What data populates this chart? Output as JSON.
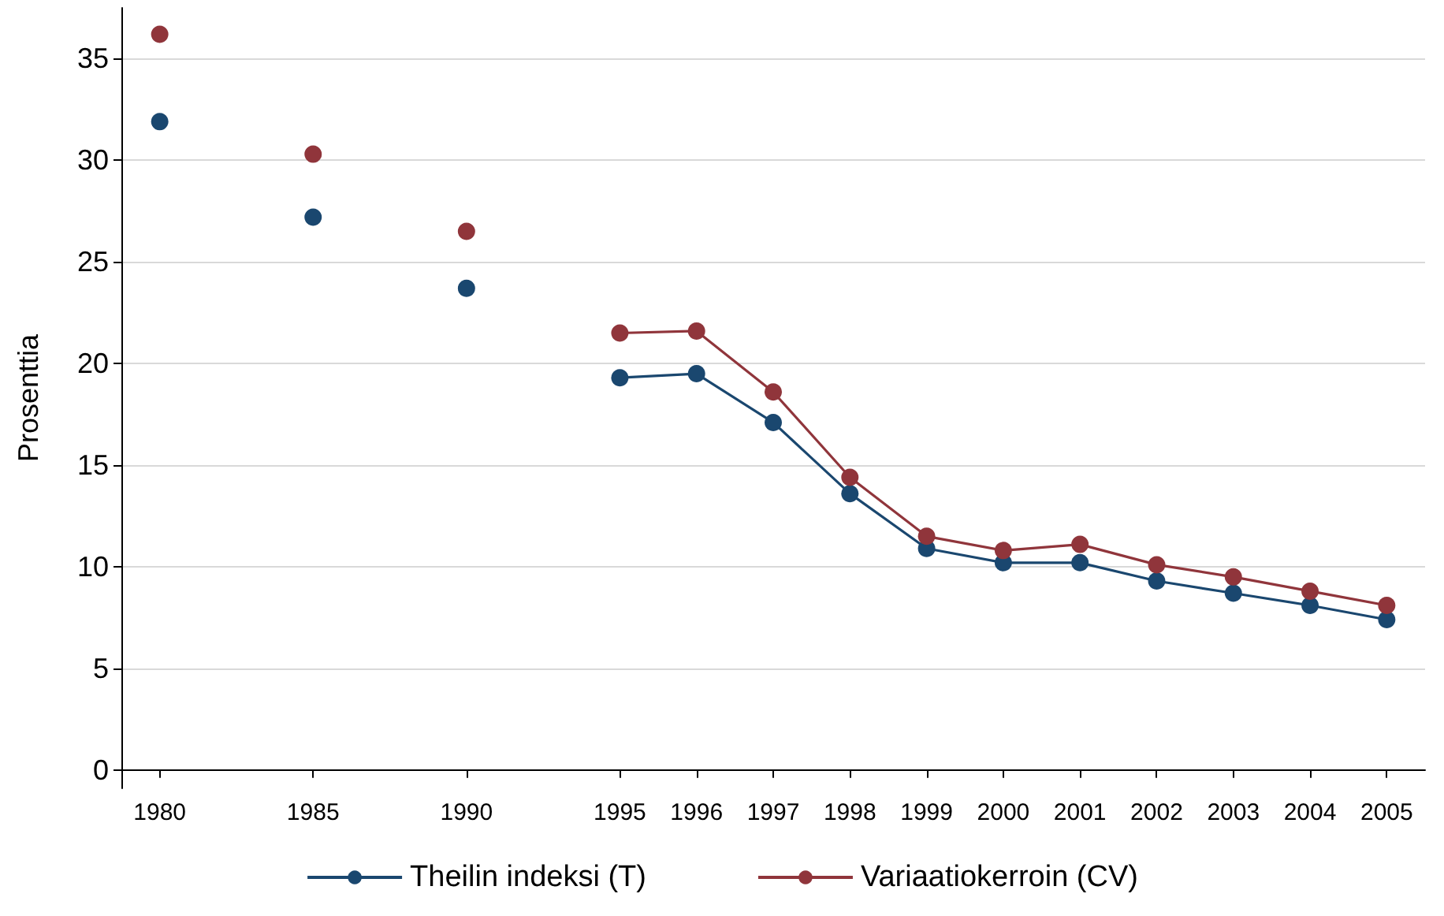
{
  "chart_data": {
    "type": "line",
    "ylabel": "Prosenttia",
    "categories": [
      "1980",
      null,
      "1985",
      null,
      "1990",
      null,
      "1995",
      "1996",
      "1997",
      "1998",
      "1999",
      "2000",
      "2001",
      "2002",
      "2003",
      "2004",
      "2005"
    ],
    "series": [
      {
        "name": "Theilin indeksi (T)",
        "color": "#1a476f",
        "values": [
          31.9,
          null,
          27.2,
          null,
          23.7,
          null,
          19.3,
          19.5,
          17.1,
          13.6,
          10.9,
          10.2,
          10.2,
          9.3,
          8.7,
          8.1,
          7.4
        ]
      },
      {
        "name": "Variaatiokerroin (CV)",
        "color": "#90353b",
        "values": [
          36.2,
          null,
          30.3,
          null,
          26.5,
          null,
          21.5,
          21.6,
          18.6,
          14.4,
          11.5,
          10.8,
          11.1,
          10.1,
          9.5,
          8.8,
          8.1
        ]
      }
    ],
    "ylim": [
      -0.9,
      37.5
    ],
    "yticks": [
      0,
      5,
      10,
      15,
      20,
      25,
      30,
      35
    ],
    "grid": "y",
    "legend": "bottom",
    "marker": "circle",
    "line_style": "solid"
  }
}
